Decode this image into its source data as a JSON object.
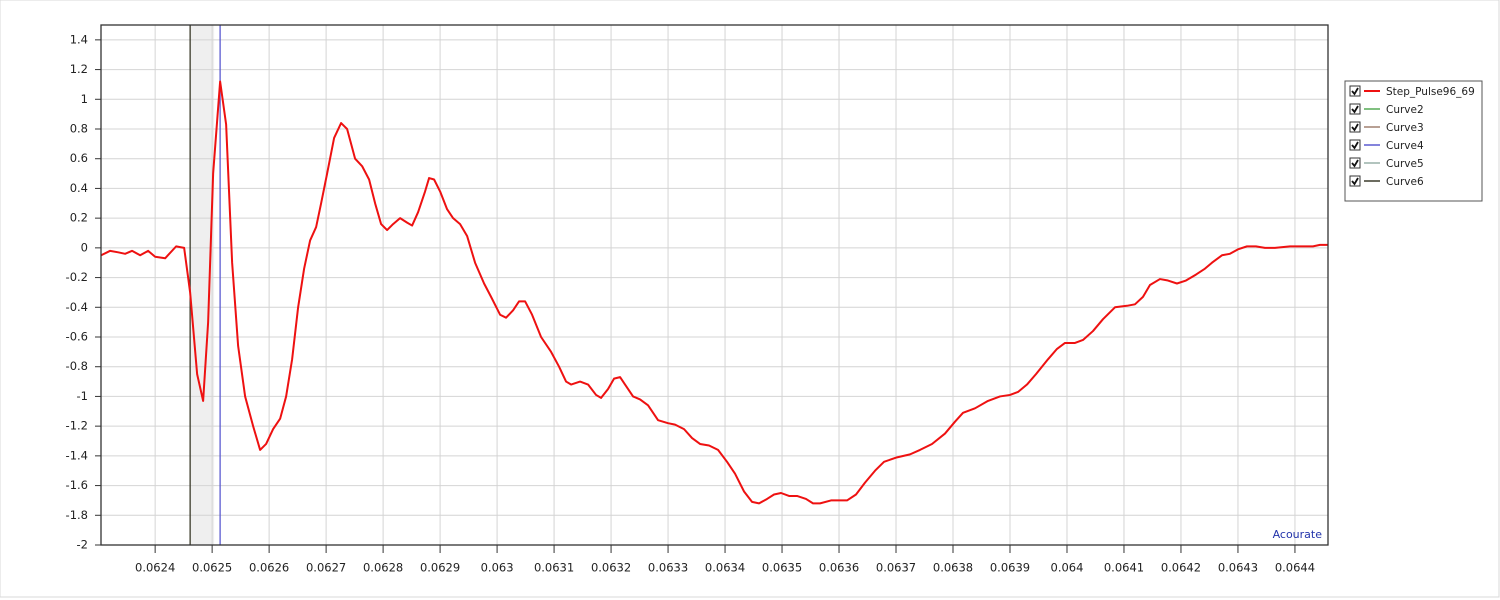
{
  "chart_data": {
    "type": "line",
    "xlim": [
      0.062305,
      0.064458
    ],
    "ylim": [
      -2,
      1.5
    ],
    "xticks": [
      0.0624,
      0.0625,
      0.0626,
      0.0627,
      0.0628,
      0.0629,
      0.063,
      0.0631,
      0.0632,
      0.0633,
      0.0634,
      0.0635,
      0.0636,
      0.0637,
      0.0638,
      0.0639,
      0.064,
      0.0641,
      0.0642,
      0.0643,
      0.0644
    ],
    "yticks": [
      -2,
      -1.8,
      -1.6,
      -1.4,
      -1.2,
      -1,
      -0.8,
      -0.6,
      -0.4,
      -0.2,
      0,
      0.2,
      0.4,
      0.6,
      0.8,
      1,
      1.2,
      1.4
    ],
    "grid": true,
    "legend": "right",
    "annotation": "Acourate",
    "shaded_span": [
      0.0624614,
      0.0625035
    ],
    "vertical_lines": [
      {
        "x": 0.0624614,
        "color": "#3a3a2a"
      },
      {
        "x": 0.062514,
        "color": "#5a5ad0"
      }
    ],
    "series": [
      {
        "name": "Step_Pulse96_69",
        "color": "#ee1111",
        "x": [
          0.06230526,
          0.06232105,
          0.06233509,
          0.06234737,
          0.06235965,
          0.06237368,
          0.06238772,
          0.0624,
          0.06241754,
          0.06243684,
          0.06245088,
          0.0624614,
          0.06247368,
          0.06248421,
          0.06249298,
          0.06250176,
          0.06251404,
          0.06252456,
          0.06253509,
          0.06254561,
          0.06255789,
          0.06257193,
          0.06258421,
          0.06259474,
          0.06260702,
          0.0626193,
          0.06262982,
          0.06264035,
          0.06265088,
          0.0626614,
          0.06267193,
          0.06268246,
          0.06269123,
          0.06270175,
          0.06271404,
          0.06272632,
          0.06273684,
          0.06275088,
          0.06276316,
          0.06277544,
          0.06278596,
          0.06279649,
          0.06280702,
          0.06281754,
          0.06282982,
          0.06284211,
          0.06285088,
          0.0628614,
          0.06287368,
          0.0628807,
          0.06288947,
          0.0629,
          0.06291228,
          0.06292281,
          0.06293509,
          0.06294737,
          0.0629614,
          0.06297719,
          0.06298947,
          0.06300526,
          0.06301579,
          0.06302807,
          0.0630386,
          0.06304912,
          0.0630614,
          0.06307719,
          0.06309474,
          0.06310877,
          0.06312105,
          0.06312982,
          0.06314561,
          0.06315965,
          0.06317368,
          0.06318246,
          0.06319474,
          0.06320526,
          0.06321579,
          0.06322456,
          0.0632386,
          0.06325088,
          0.06326491,
          0.06328246,
          0.0633,
          0.06331228,
          0.06332807,
          0.06334211,
          0.06335614,
          0.06337193,
          0.06338772,
          0.06340351,
          0.06341754,
          0.06343333,
          0.06344737,
          0.06345965,
          0.06347368,
          0.06348596,
          0.06349825,
          0.06351228,
          0.06352632,
          0.06354211,
          0.06355439,
          0.06356667,
          0.06358596,
          0.06361404,
          0.06362982,
          0.06364561,
          0.06366316,
          0.06367895,
          0.06370175,
          0.06372456,
          0.06374211,
          0.06376316,
          0.06378596,
          0.06380351,
          0.06381754,
          0.0638386,
          0.0638614,
          0.06388246,
          0.0639,
          0.06391404,
          0.06392982,
          0.06394561,
          0.06396667,
          0.06398246,
          0.06399649,
          0.06401404,
          0.06402807,
          0.06404561,
          0.06406316,
          0.06408421,
          0.06410526,
          0.0641193,
          0.06413333,
          0.06414561,
          0.06416316,
          0.06417719,
          0.06419298,
          0.06420877,
          0.06422632,
          0.06424211,
          0.06425439,
          0.06427193,
          0.06428596,
          0.0643,
          0.06431579,
          0.06433158,
          0.06434737,
          0.06436491,
          0.06439123,
          0.06441754,
          0.06443158,
          0.06444386,
          0.06445789
        ],
        "values": [
          -0.05,
          -0.02,
          -0.03,
          -0.04,
          -0.02,
          -0.05,
          -0.02,
          -0.06,
          -0.07,
          0.01,
          0,
          -0.3,
          -0.85,
          -1.03,
          -0.5,
          0.5,
          1.12,
          0.83,
          -0.1,
          -0.66,
          -1,
          -1.2,
          -1.36,
          -1.32,
          -1.22,
          -1.15,
          -1,
          -0.75,
          -0.4,
          -0.14,
          0.05,
          0.14,
          0.3,
          0.5,
          0.74,
          0.84,
          0.8,
          0.6,
          0.55,
          0.46,
          0.3,
          0.16,
          0.12,
          0.16,
          0.2,
          0.17,
          0.15,
          0.24,
          0.38,
          0.47,
          0.46,
          0.38,
          0.26,
          0.2,
          0.16,
          0.08,
          -0.1,
          -0.24,
          -0.33,
          -0.45,
          -0.47,
          -0.42,
          -0.36,
          -0.36,
          -0.45,
          -0.6,
          -0.7,
          -0.8,
          -0.9,
          -0.92,
          -0.9,
          -0.92,
          -0.99,
          -1.01,
          -0.95,
          -0.88,
          -0.87,
          -0.92,
          -1,
          -1.02,
          -1.06,
          -1.16,
          -1.18,
          -1.19,
          -1.22,
          -1.28,
          -1.32,
          -1.33,
          -1.36,
          -1.44,
          -1.52,
          -1.64,
          -1.71,
          -1.72,
          -1.69,
          -1.66,
          -1.65,
          -1.67,
          -1.67,
          -1.69,
          -1.72,
          -1.72,
          -1.7,
          -1.7,
          -1.66,
          -1.58,
          -1.5,
          -1.44,
          -1.41,
          -1.39,
          -1.36,
          -1.32,
          -1.25,
          -1.17,
          -1.11,
          -1.08,
          -1.03,
          -1,
          -0.99,
          -0.97,
          -0.92,
          -0.85,
          -0.75,
          -0.68,
          -0.64,
          -0.64,
          -0.62,
          -0.56,
          -0.48,
          -0.4,
          -0.39,
          -0.38,
          -0.33,
          -0.25,
          -0.21,
          -0.22,
          -0.24,
          -0.22,
          -0.18,
          -0.14,
          -0.1,
          -0.05,
          -0.04,
          -0.01,
          0.01,
          0.01,
          0,
          0,
          0.01,
          0.01,
          0.01,
          0.02,
          0.02
        ]
      },
      {
        "name": "Curve2",
        "color": "#55aa55"
      },
      {
        "name": "Curve3",
        "color": "#a08070"
      },
      {
        "name": "Curve4",
        "color": "#5a5ad0"
      },
      {
        "name": "Curve5",
        "color": "#99b0a8"
      },
      {
        "name": "Curve6",
        "color": "#3a3a2a"
      }
    ]
  }
}
